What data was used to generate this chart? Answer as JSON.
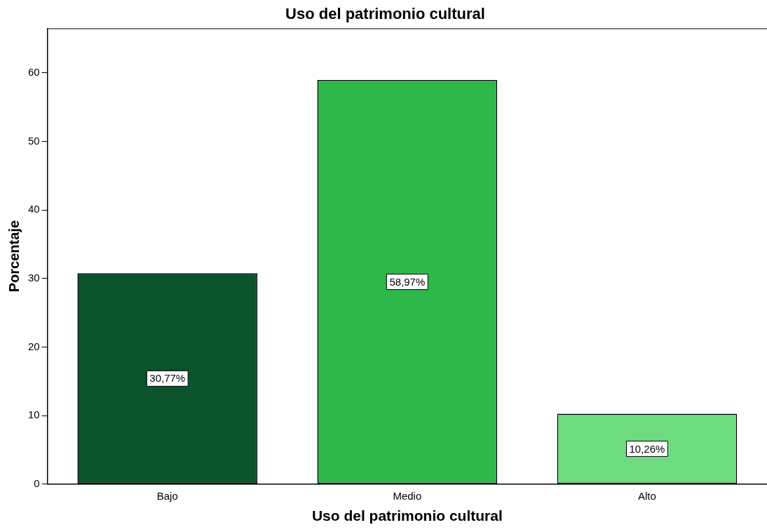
{
  "chart_data": {
    "type": "bar",
    "title": "Uso del patrimonio cultural",
    "xlabel": "Uso del patrimonio cultural",
    "ylabel": "Porcentaje",
    "categories": [
      "Bajo",
      "Medio",
      "Alto"
    ],
    "values": [
      30.77,
      58.97,
      10.26
    ],
    "colors": [
      "#0b532b",
      "#2eb84a",
      "#6fdb80"
    ],
    "value_labels": [
      "30,77%",
      "58,97%",
      "10,26%"
    ],
    "ylim": [
      0,
      66.5
    ],
    "yticks": [
      0,
      10,
      20,
      30,
      40,
      50,
      60
    ],
    "grid": false,
    "legend": false
  }
}
